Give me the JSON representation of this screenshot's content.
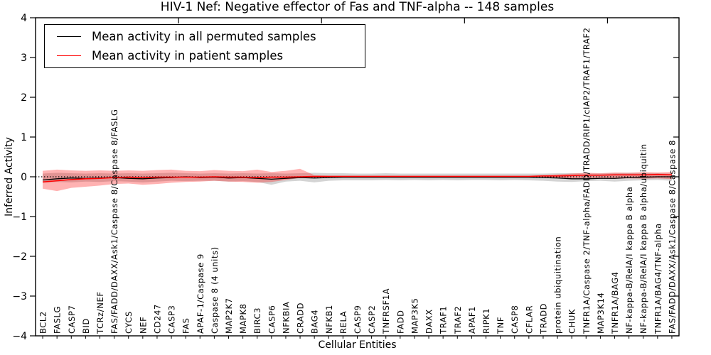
{
  "chart_data": {
    "type": "line",
    "title": "HIV-1 Nef: Negative effector of Fas and TNF-alpha -- 148 samples",
    "xlabel": "Cellular Entities",
    "ylabel": "Inferred Activity",
    "ylim": [
      -4,
      4
    ],
    "y_ticks": [
      4,
      3,
      2,
      1,
      0,
      -1,
      -2,
      -3,
      -4
    ],
    "y_tick_labels": [
      "4",
      "3",
      "2",
      "1",
      "0",
      "−1",
      "−2",
      "−3",
      "−4"
    ],
    "x_major_ticks": [
      10,
      20,
      30,
      40
    ],
    "grid": false,
    "legend_position": "upper left",
    "zero_line": {
      "y": 0,
      "style": "dotted",
      "color": "#000000"
    },
    "categories": [
      "BCL2",
      "FASLG",
      "CASP7",
      "BID",
      "TCRz/NEF",
      "FAS/FADD/DAXX/Ask1/Caspase 8/Caspase 8/FASLG",
      "CYCS",
      "NEF",
      "CD247",
      "CASP3",
      "FAS",
      "APAF-1/Caspase 9",
      "Caspase 8 (4 units)",
      "MAP2K7",
      "MAPK8",
      "BIRC3",
      "CASP6",
      "NFKBIA",
      "CRADD",
      "BAG4",
      "NFKB1",
      "RELA",
      "CASP9",
      "CASP2",
      "TNFRSF1A",
      "FADD",
      "MAP3K5",
      "DAXX",
      "TRAF1",
      "TRAF2",
      "APAF1",
      "RIPK1",
      "TNF",
      "CASP8",
      "CFLAR",
      "TRADD",
      "protein ubiquitination",
      "CHUK",
      "TNFR1A/Caspase 2/TNF-alpha/FADD/TRADD/RIP1/cIAP2/TRAF1/TRAF2",
      "MAP3K14",
      "TNFR1A/BAG4",
      "NF-kappa-B/RelA/I kappa B alpha",
      "NF-kappa-B/RelA/I kappa B alpha/ubiquitin",
      "TNFR1A/BAG4/TNF-alpha",
      "FAS/FADD/DAXX/Ask1/Caspase 8/Caspase 8"
    ],
    "series": [
      {
        "name": "Mean activity in all permuted samples",
        "color": "#000000",
        "line_width": 1.3,
        "band_color": "#cccccc",
        "band_opacity": 0.85,
        "values": [
          -0.08,
          -0.05,
          -0.03,
          -0.04,
          -0.03,
          -0.02,
          -0.04,
          -0.05,
          -0.03,
          -0.02,
          0.0,
          -0.02,
          -0.01,
          -0.03,
          -0.02,
          -0.04,
          -0.06,
          -0.04,
          -0.02,
          -0.03,
          -0.02,
          -0.01,
          -0.01,
          -0.01,
          -0.01,
          -0.01,
          -0.01,
          -0.01,
          -0.01,
          -0.01,
          -0.01,
          -0.01,
          -0.01,
          -0.01,
          -0.01,
          -0.02,
          -0.03,
          -0.05,
          -0.05,
          -0.04,
          -0.04,
          -0.02,
          -0.01,
          0.0,
          0.0
        ],
        "band_low": [
          -0.15,
          -0.13,
          -0.14,
          -0.12,
          -0.13,
          -0.11,
          -0.12,
          -0.14,
          -0.12,
          -0.1,
          -0.11,
          -0.1,
          -0.1,
          -0.12,
          -0.11,
          -0.13,
          -0.2,
          -0.12,
          -0.1,
          -0.14,
          -0.1,
          -0.09,
          -0.09,
          -0.09,
          -0.08,
          -0.09,
          -0.08,
          -0.09,
          -0.08,
          -0.09,
          -0.08,
          -0.08,
          -0.09,
          -0.08,
          -0.09,
          -0.1,
          -0.12,
          -0.13,
          -0.11,
          -0.1,
          -0.12,
          -0.1,
          -0.09,
          -0.08,
          -0.1
        ],
        "band_high": [
          0.08,
          0.1,
          0.09,
          0.08,
          0.09,
          0.08,
          0.09,
          0.08,
          0.09,
          0.1,
          0.09,
          0.08,
          0.09,
          0.08,
          0.09,
          0.08,
          0.09,
          0.08,
          0.09,
          0.1,
          0.09,
          0.09,
          0.08,
          0.08,
          0.09,
          0.08,
          0.08,
          0.08,
          0.08,
          0.08,
          0.08,
          0.08,
          0.08,
          0.08,
          0.08,
          0.08,
          0.09,
          0.09,
          0.08,
          0.08,
          0.09,
          0.1,
          0.09,
          0.09,
          0.08
        ]
      },
      {
        "name": "Mean activity in patient samples",
        "color": "#ff0000",
        "line_width": 1.5,
        "band_color": "#ff0000",
        "band_opacity": 0.3,
        "values": [
          -0.13,
          -0.1,
          -0.07,
          -0.05,
          -0.04,
          -0.02,
          -0.01,
          -0.02,
          -0.01,
          -0.01,
          -0.01,
          -0.01,
          0.0,
          -0.01,
          -0.01,
          -0.02,
          -0.01,
          -0.01,
          0.0,
          0.01,
          0.01,
          0.01,
          0.01,
          0.01,
          0.01,
          0.01,
          0.01,
          0.01,
          0.01,
          0.01,
          0.01,
          0.01,
          0.01,
          0.01,
          0.01,
          0.02,
          0.02,
          0.03,
          0.04,
          0.04,
          0.05,
          0.05,
          0.05,
          0.06,
          0.05
        ],
        "band_low": [
          -0.3,
          -0.36,
          -0.28,
          -0.25,
          -0.22,
          -0.18,
          -0.17,
          -0.2,
          -0.18,
          -0.15,
          -0.13,
          -0.12,
          -0.1,
          -0.12,
          -0.13,
          -0.15,
          -0.13,
          -0.08,
          -0.03,
          -0.02,
          -0.02,
          -0.02,
          -0.02,
          -0.02,
          -0.02,
          -0.02,
          -0.02,
          -0.02,
          -0.02,
          -0.02,
          -0.02,
          -0.02,
          -0.02,
          -0.02,
          -0.02,
          -0.02,
          -0.03,
          -0.04,
          -0.03,
          -0.04,
          -0.05,
          -0.04,
          -0.05,
          -0.04,
          -0.06
        ],
        "band_high": [
          0.15,
          0.18,
          0.16,
          0.15,
          0.16,
          0.15,
          0.16,
          0.15,
          0.17,
          0.18,
          0.15,
          0.14,
          0.17,
          0.15,
          0.14,
          0.18,
          0.12,
          0.15,
          0.2,
          0.04,
          0.03,
          0.03,
          0.03,
          0.03,
          0.03,
          0.03,
          0.03,
          0.03,
          0.03,
          0.03,
          0.03,
          0.03,
          0.03,
          0.03,
          0.03,
          0.04,
          0.06,
          0.08,
          0.1,
          0.09,
          0.11,
          0.1,
          0.12,
          0.11,
          0.12
        ]
      }
    ]
  }
}
